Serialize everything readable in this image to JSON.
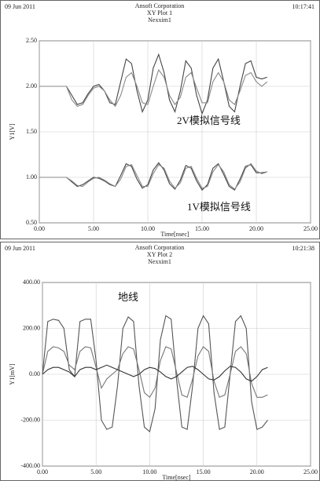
{
  "chart_data": [
    {
      "type": "line",
      "date": "09 Jun 2011",
      "organization": "Ansoft Corporation",
      "title": "XY Plot 1",
      "subtitle": "Nexxim1",
      "timestamp": "10:17:41",
      "xlabel": "Time[nsec]",
      "ylabel": "Y1[V]",
      "annotations": [
        "2V模拟信号线",
        "1V模拟信号线"
      ],
      "xlim": [
        0,
        25
      ],
      "ylim": [
        0.5,
        2.5
      ],
      "xticks": [
        {
          "value": 0,
          "label": "0.00"
        },
        {
          "value": 5,
          "label": "5.00"
        },
        {
          "value": 10,
          "label": "10.00"
        },
        {
          "value": 15,
          "label": "15.00"
        },
        {
          "value": 20,
          "label": "20.00"
        },
        {
          "value": 25,
          "label": "25.00"
        }
      ],
      "yticks": [
        {
          "value": 0.5,
          "label": "0.50"
        },
        {
          "value": 1,
          "label": "1.00"
        },
        {
          "value": 1.5,
          "label": "1.50"
        },
        {
          "value": 2,
          "label": "2.00"
        },
        {
          "value": 2.5,
          "label": "2.50"
        }
      ],
      "grid": true,
      "x": [
        0,
        0.5,
        1,
        1.5,
        2,
        2.5,
        3,
        3.5,
        4,
        4.5,
        5,
        5.5,
        6,
        6.5,
        7,
        7.5,
        8,
        8.5,
        9,
        9.5,
        10,
        10.5,
        11,
        11.5,
        12,
        12.5,
        13,
        13.5,
        14,
        14.5,
        15,
        15.5,
        16,
        16.5,
        17,
        17.5,
        18,
        18.5,
        19,
        19.5,
        20,
        20.5,
        21
      ],
      "series": [
        {
          "color": "#444",
          "values": [
            2,
            2,
            2,
            2,
            2,
            2,
            1.9,
            1.8,
            1.82,
            1.92,
            2,
            2.02,
            1.95,
            1.82,
            1.8,
            2.05,
            2.3,
            2.25,
            1.95,
            1.72,
            1.85,
            2.2,
            2.35,
            2.15,
            1.85,
            1.72,
            1.95,
            2.28,
            2.2,
            1.9,
            1.7,
            1.85,
            2.2,
            2.3,
            2.05,
            1.78,
            1.72,
            2,
            2.25,
            2.28,
            2.1,
            2.08,
            2.1
          ]
        },
        {
          "color": "#888",
          "values": [
            2,
            2,
            2,
            2,
            2,
            2,
            1.85,
            1.78,
            1.8,
            1.9,
            1.98,
            2,
            1.95,
            1.85,
            1.78,
            1.9,
            2.1,
            2.15,
            2,
            1.82,
            1.8,
            2,
            2.18,
            2.1,
            1.9,
            1.8,
            1.88,
            2.1,
            2.15,
            1.98,
            1.82,
            1.82,
            2.05,
            2.15,
            2.05,
            1.85,
            1.8,
            1.95,
            2.12,
            2.15,
            2.05,
            2,
            2.05
          ]
        },
        {
          "color": "#444",
          "values": [
            1,
            1,
            1,
            1,
            1,
            1,
            0.95,
            0.9,
            0.92,
            0.96,
            1,
            0.99,
            0.96,
            0.92,
            0.9,
            1.02,
            1.15,
            1.12,
            0.98,
            0.88,
            0.92,
            1.08,
            1.16,
            1.08,
            0.93,
            0.87,
            0.97,
            1.13,
            1.1,
            0.96,
            0.86,
            0.92,
            1.1,
            1.15,
            1.03,
            0.9,
            0.86,
            0.98,
            1.12,
            1.14,
            1.05,
            1.05,
            1.06
          ]
        },
        {
          "color": "#888",
          "values": [
            1,
            1,
            1,
            1,
            1,
            1,
            0.96,
            0.91,
            0.9,
            0.95,
            0.99,
            1,
            0.97,
            0.93,
            0.9,
            0.98,
            1.12,
            1.14,
            1.02,
            0.9,
            0.9,
            1.04,
            1.14,
            1.1,
            0.96,
            0.88,
            0.94,
            1.1,
            1.12,
            0.99,
            0.88,
            0.9,
            1.06,
            1.14,
            1.06,
            0.92,
            0.87,
            0.95,
            1.1,
            1.15,
            1.07,
            1.04,
            1.06
          ]
        }
      ]
    },
    {
      "type": "line",
      "date": "09 Jun 2011",
      "organization": "Ansoft Corporation",
      "title": "XY Plot 2",
      "subtitle": "Nexxim1",
      "timestamp": "10:21:38",
      "xlabel": "Time[nsec]",
      "ylabel": "Y1[mV]",
      "annotations": [
        "地线"
      ],
      "xlim": [
        0,
        25
      ],
      "ylim": [
        -400,
        400
      ],
      "xticks": [
        {
          "value": 0,
          "label": "0.00"
        },
        {
          "value": 5,
          "label": "5.00"
        },
        {
          "value": 10,
          "label": "10.00"
        },
        {
          "value": 15,
          "label": "15.00"
        },
        {
          "value": 20,
          "label": "20.00"
        },
        {
          "value": 25,
          "label": "25.00"
        }
      ],
      "yticks": [
        {
          "value": -400,
          "label": "-400.00"
        },
        {
          "value": -200,
          "label": "-200.00"
        },
        {
          "value": 0,
          "label": "0.00"
        },
        {
          "value": 200,
          "label": "200.00"
        },
        {
          "value": 400,
          "label": "400.00"
        }
      ],
      "grid": true,
      "x": [
        0,
        0.5,
        1,
        1.5,
        2,
        2.5,
        3,
        3.5,
        4,
        4.5,
        5,
        5.5,
        6,
        6.5,
        7,
        7.5,
        8,
        8.5,
        9,
        9.5,
        10,
        10.5,
        11,
        11.5,
        12,
        12.5,
        13,
        13.5,
        14,
        14.5,
        15,
        15.5,
        16,
        16.5,
        17,
        17.5,
        18,
        18.5,
        19,
        19.5,
        20,
        20.5,
        21
      ],
      "series": [
        {
          "color": "#555",
          "values": [
            0,
            230,
            240,
            235,
            200,
            20,
            -10,
            230,
            240,
            240,
            60,
            -200,
            -240,
            -230,
            -50,
            200,
            250,
            230,
            -50,
            -230,
            -250,
            -150,
            150,
            255,
            240,
            -20,
            -230,
            -240,
            -50,
            200,
            255,
            220,
            -80,
            -240,
            -230,
            0,
            230,
            255,
            200,
            -120,
            -240,
            -230,
            -200
          ]
        },
        {
          "color": "#777",
          "values": [
            0,
            100,
            120,
            115,
            100,
            40,
            20,
            100,
            120,
            115,
            30,
            -60,
            -20,
            0,
            20,
            90,
            120,
            110,
            20,
            -80,
            -100,
            -60,
            60,
            120,
            110,
            10,
            -90,
            -100,
            -20,
            80,
            120,
            100,
            -30,
            -100,
            -90,
            0,
            100,
            120,
            90,
            -40,
            -100,
            -100,
            -90
          ]
        },
        {
          "color": "#333",
          "values": [
            0,
            20,
            30,
            30,
            20,
            10,
            -10,
            20,
            30,
            30,
            20,
            30,
            40,
            30,
            20,
            10,
            0,
            -10,
            0,
            20,
            30,
            25,
            10,
            -10,
            -20,
            -10,
            10,
            30,
            35,
            20,
            0,
            -20,
            -25,
            -10,
            15,
            35,
            30,
            10,
            -20,
            -30,
            -10,
            20,
            30
          ]
        }
      ]
    }
  ]
}
